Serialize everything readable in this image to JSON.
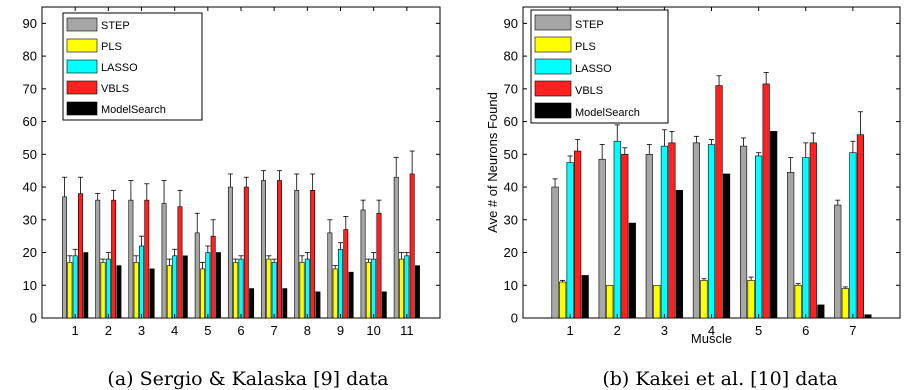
{
  "chart_data": [
    {
      "type": "bar",
      "caption": "(a) Sergio & Kalaska [9] data",
      "xlabel": "",
      "ylabel": "",
      "ylim": [
        0,
        95
      ],
      "yticks": [
        0,
        10,
        20,
        30,
        40,
        50,
        60,
        70,
        80,
        90
      ],
      "categories": [
        "1",
        "2",
        "3",
        "4",
        "5",
        "6",
        "7",
        "8",
        "9",
        "10",
        "11"
      ],
      "legend_position": "top-left",
      "error_bars": true,
      "series": [
        {
          "name": "STEP",
          "color": "#a6a6a6",
          "values": [
            37,
            36,
            36,
            35,
            26,
            40,
            42,
            39,
            26,
            33,
            43
          ],
          "errors": [
            6,
            2,
            6,
            7,
            6,
            4,
            3,
            5,
            4,
            3,
            6
          ]
        },
        {
          "name": "PLS",
          "color": "#ffff00",
          "values": [
            17,
            17,
            17,
            16,
            15,
            17,
            18,
            17,
            15,
            17,
            18
          ],
          "errors": [
            2,
            1,
            2,
            2,
            2,
            1,
            1,
            2,
            1,
            1,
            2
          ]
        },
        {
          "name": "LASSO",
          "color": "#00ffff",
          "values": [
            19,
            18,
            22,
            19,
            20,
            18,
            17,
            18,
            21,
            18,
            19
          ],
          "errors": [
            2,
            2,
            3,
            2,
            2,
            1,
            1,
            2,
            2,
            2,
            1
          ]
        },
        {
          "name": "VBLS",
          "color": "#ff2020",
          "values": [
            38,
            36,
            36,
            34,
            25,
            40,
            42,
            39,
            27,
            32,
            44
          ],
          "errors": [
            5,
            3,
            5,
            5,
            5,
            3,
            3,
            5,
            4,
            4,
            7
          ]
        },
        {
          "name": "ModelSearch",
          "color": "#000000",
          "values": [
            20,
            16,
            15,
            19,
            20,
            9,
            9,
            8,
            14,
            8,
            16
          ]
        }
      ]
    },
    {
      "type": "bar",
      "caption": "(b) Kakei et al. [10] data",
      "xlabel": "Muscle",
      "ylabel": "Ave # of Neurons Found",
      "ylim": [
        0,
        95
      ],
      "yticks": [
        0,
        10,
        20,
        30,
        40,
        50,
        60,
        70,
        80,
        90
      ],
      "categories": [
        "1",
        "2",
        "3",
        "4",
        "5",
        "6",
        "7"
      ],
      "legend_position": "top-left",
      "error_bars": true,
      "series": [
        {
          "name": "STEP",
          "color": "#a6a6a6",
          "values": [
            40,
            48.5,
            50,
            53.5,
            52.5,
            44.5,
            34.5
          ],
          "errors": [
            2.5,
            4.5,
            3,
            2,
            2.5,
            4.5,
            1.5
          ]
        },
        {
          "name": "PLS",
          "color": "#ffff00",
          "values": [
            11,
            10,
            10,
            11.5,
            11.5,
            10,
            9
          ],
          "errors": [
            0.5,
            0,
            0,
            0.5,
            1,
            0.5,
            0.5
          ]
        },
        {
          "name": "LASSO",
          "color": "#00ffff",
          "values": [
            47.5,
            54,
            52.5,
            53,
            49.5,
            49,
            50.5
          ],
          "errors": [
            2,
            5,
            5,
            1.5,
            1,
            4.5,
            3.5
          ]
        },
        {
          "name": "VBLS",
          "color": "#ff2020",
          "values": [
            51,
            50,
            53.5,
            71,
            71.5,
            53.5,
            56
          ],
          "errors": [
            3.5,
            2,
            3.5,
            3,
            3.5,
            3,
            7
          ]
        },
        {
          "name": "ModelSearch",
          "color": "#000000",
          "values": [
            13,
            29,
            39,
            44,
            57,
            4,
            1
          ]
        }
      ]
    }
  ]
}
